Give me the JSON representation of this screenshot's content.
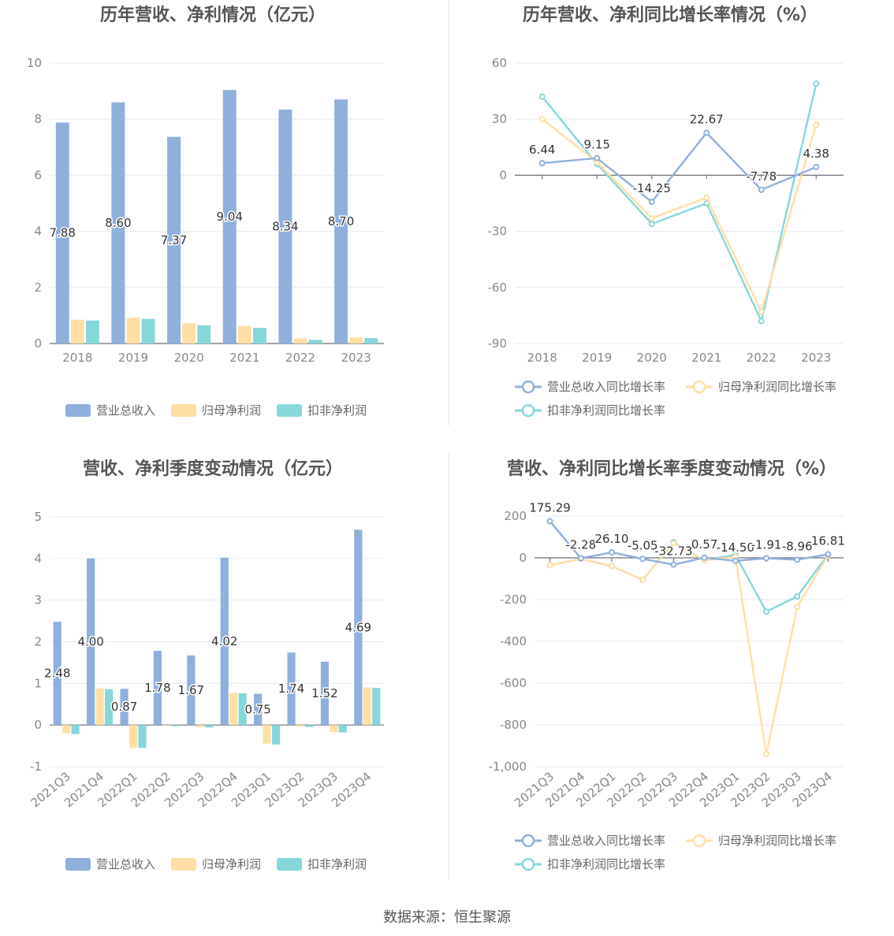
{
  "source": "数据来源：恒生聚源",
  "colors": {
    "revenue": "#8fb0db",
    "parent": "#ffdfa6",
    "deducted": "#86d7da"
  },
  "chart_data": [
    {
      "type": "bar",
      "title": "历年营收、净利情况（亿元）",
      "categories": [
        "2018",
        "2019",
        "2020",
        "2021",
        "2022",
        "2023"
      ],
      "ylim": [
        0,
        10
      ],
      "yticks": [
        "0",
        "2",
        "4",
        "6",
        "8",
        "10"
      ],
      "legend": "bottom",
      "series": [
        {
          "name": "营业总收入",
          "values": [
            7.88,
            8.6,
            7.37,
            9.04,
            8.34,
            8.7
          ],
          "labels": [
            "7.88",
            "8.60",
            "7.37",
            "9.04",
            "8.34",
            "8.70"
          ]
        },
        {
          "name": "归母净利润",
          "values": [
            0.85,
            0.92,
            0.72,
            0.62,
            0.18,
            0.22
          ]
        },
        {
          "name": "扣非净利润",
          "values": [
            0.82,
            0.88,
            0.65,
            0.56,
            0.13,
            0.19
          ]
        }
      ]
    },
    {
      "type": "line",
      "title": "历年营收、净利同比增长率情况（%）",
      "categories": [
        "2018",
        "2019",
        "2020",
        "2021",
        "2022",
        "2023"
      ],
      "ylim": [
        -90,
        60
      ],
      "yticks": [
        "-90",
        "-60",
        "-30",
        "0",
        "30",
        "60"
      ],
      "legend": "bottom",
      "series": [
        {
          "name": "营业总收入同比增长率",
          "values": [
            6.44,
            9.15,
            -14.25,
            22.67,
            -7.78,
            4.38
          ],
          "labels": [
            "6.44",
            "9.15",
            "-14.25",
            "22.67",
            "-7.78",
            "4.38"
          ]
        },
        {
          "name": "归母净利润同比增长率",
          "values": [
            30,
            7,
            -23,
            -12,
            -73,
            27
          ]
        },
        {
          "name": "扣非净利润同比增长率",
          "values": [
            42,
            6,
            -26,
            -15,
            -78,
            49
          ]
        }
      ]
    },
    {
      "type": "bar",
      "title": "营收、净利季度变动情况（亿元）",
      "categories": [
        "2021Q3",
        "2021Q4",
        "2022Q1",
        "2022Q2",
        "2022Q3",
        "2022Q4",
        "2023Q1",
        "2023Q2",
        "2023Q3",
        "2023Q4"
      ],
      "ylim": [
        -1,
        5
      ],
      "yticks": [
        "-1",
        "0",
        "1",
        "2",
        "3",
        "4",
        "5"
      ],
      "legend": "bottom",
      "series": [
        {
          "name": "营业总收入",
          "values": [
            2.48,
            4.0,
            0.87,
            1.78,
            1.67,
            4.02,
            0.75,
            1.74,
            1.52,
            4.69
          ],
          "labels": [
            "2.48",
            "4.00",
            "0.87",
            "1.78",
            "1.67",
            "4.02",
            "0.75",
            "1.74",
            "1.52",
            "4.69"
          ]
        },
        {
          "name": "归母净利润",
          "values": [
            -0.2,
            0.88,
            -0.55,
            -0.02,
            -0.05,
            0.77,
            -0.45,
            -0.04,
            -0.17,
            0.9
          ]
        },
        {
          "name": "扣非净利润",
          "values": [
            -0.22,
            0.86,
            -0.55,
            -0.03,
            -0.06,
            0.76,
            -0.47,
            -0.05,
            -0.18,
            0.89
          ]
        }
      ]
    },
    {
      "type": "line",
      "title": "营收、净利同比增长率季度变动情况（%）",
      "categories": [
        "2021Q3",
        "2021Q4",
        "2022Q1",
        "2022Q2",
        "2022Q3",
        "2022Q4",
        "2023Q1",
        "2023Q2",
        "2023Q3",
        "2023Q4"
      ],
      "ylim": [
        -1000,
        200
      ],
      "yticks": [
        "-1,000",
        "-800",
        "-600",
        "-400",
        "-200",
        "0",
        "200"
      ],
      "legend": "bottom",
      "series": [
        {
          "name": "营业总收入同比增长率",
          "values": [
            175.29,
            -2.28,
            26.1,
            -5.05,
            -32.73,
            0.57,
            -14.5,
            -1.91,
            -8.96,
            16.81
          ],
          "labels": [
            "175.29",
            "-2.28",
            "26.10",
            "-5.05",
            "-32.73",
            "0.57",
            "-14.50",
            "-1.91",
            "-8.96",
            "16.81"
          ]
        },
        {
          "name": "归母净利润同比增长率",
          "values": [
            -35,
            -5,
            -40,
            -105,
            70,
            -12,
            5,
            -940,
            -235,
            12
          ]
        },
        {
          "name": "扣非净利润同比增长率",
          "values": [
            -35,
            -5,
            -40,
            -105,
            75,
            -12,
            15,
            -258,
            -185,
            15
          ]
        }
      ]
    }
  ]
}
